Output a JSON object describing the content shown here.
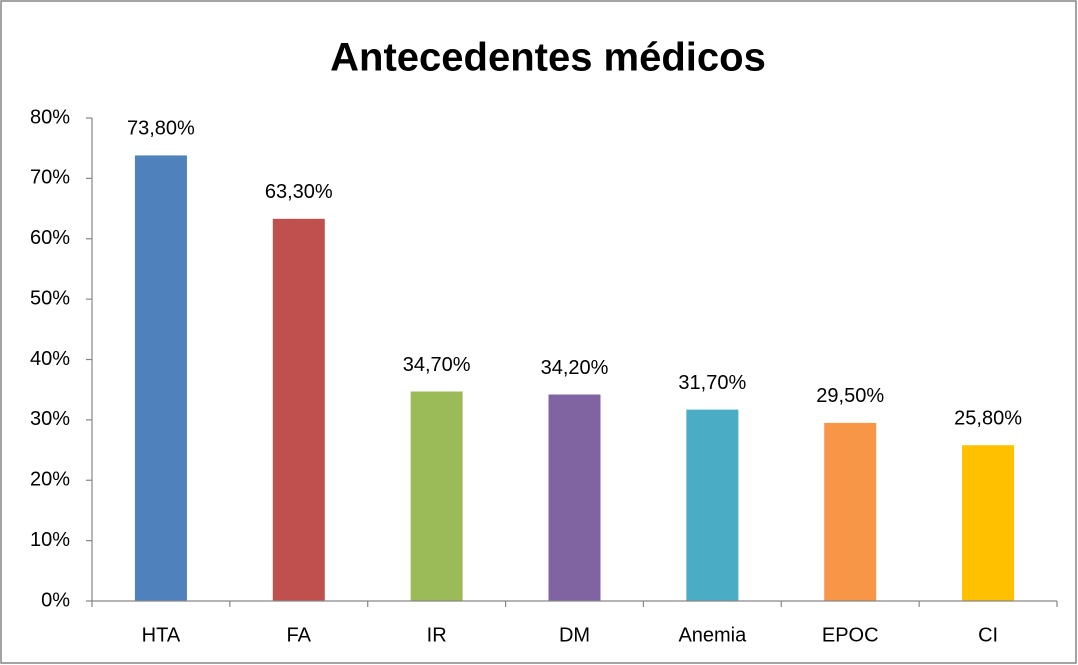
{
  "chart_data": {
    "type": "bar",
    "title": "Antecedentes médicos",
    "categories": [
      "HTA",
      "FA",
      "IR",
      "DM",
      "Anemia",
      "EPOC",
      "CI"
    ],
    "values": [
      73.8,
      63.3,
      34.7,
      34.2,
      31.7,
      29.5,
      25.8
    ],
    "value_labels": [
      "73,80%",
      "63,30%",
      "34,70%",
      "34,20%",
      "31,70%",
      "29,50%",
      "25,80%"
    ],
    "colors": [
      "#4f81bd",
      "#c0504d",
      "#9bbb59",
      "#8064a2",
      "#4bacc6",
      "#f79646",
      "#ffc000"
    ],
    "ylim": [
      0,
      80
    ],
    "yticks": [
      {
        "value": 0,
        "label": "0%"
      },
      {
        "value": 10,
        "label": "10%"
      },
      {
        "value": 20,
        "label": "20%"
      },
      {
        "value": 30,
        "label": "30%"
      },
      {
        "value": 40,
        "label": "40%"
      },
      {
        "value": 50,
        "label": "50%"
      },
      {
        "value": 60,
        "label": "60%"
      },
      {
        "value": 70,
        "label": "70%"
      },
      {
        "value": 80,
        "label": "80%"
      }
    ],
    "grid": false
  }
}
